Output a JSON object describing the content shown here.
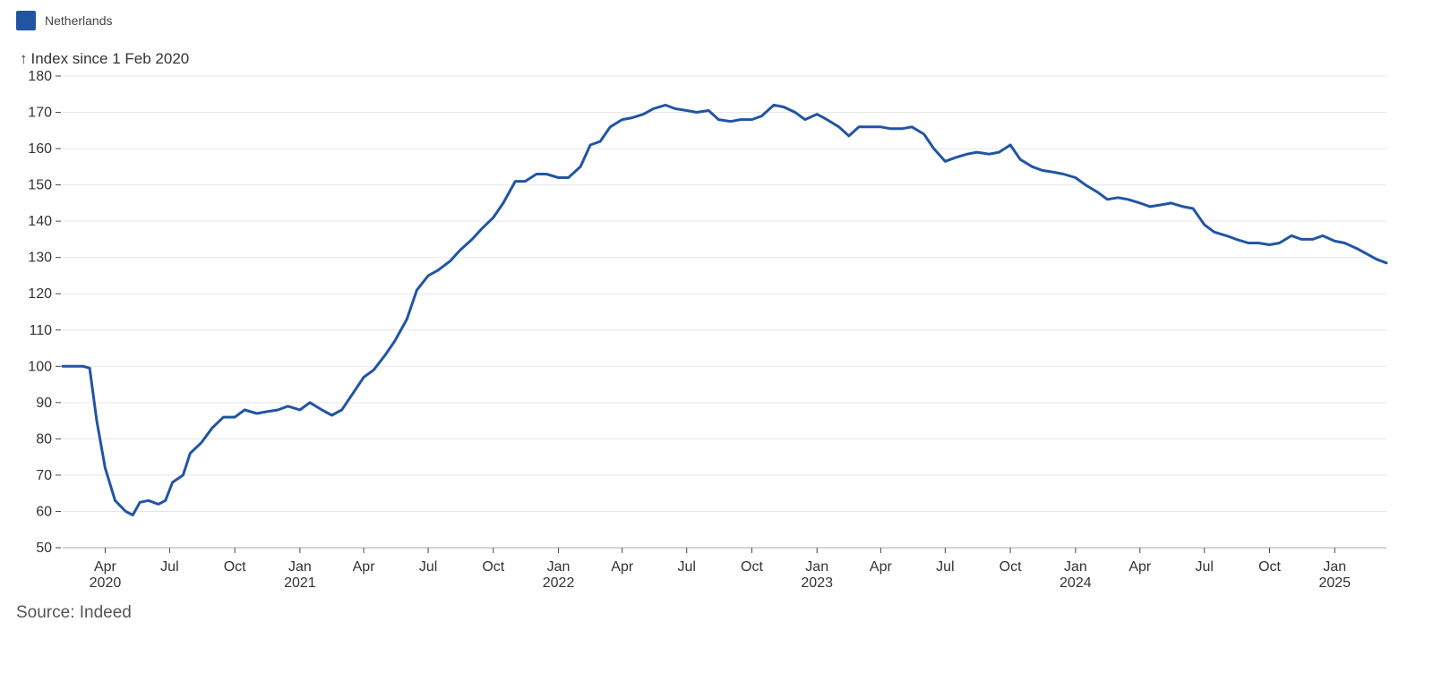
{
  "legend": {
    "label": "Netherlands",
    "color": "#2155a3"
  },
  "source": "Source: Indeed",
  "chart_data": {
    "type": "line",
    "title": "",
    "ylabel": "Index since 1 Feb 2020",
    "xlabel": "",
    "ylim": [
      50,
      180
    ],
    "yticks": [
      50,
      60,
      70,
      80,
      90,
      100,
      110,
      120,
      130,
      140,
      150,
      160,
      170,
      180
    ],
    "grid": true,
    "legend_position": "top-left",
    "xlim": [
      "2020-02-01",
      "2025-03-15"
    ],
    "xticks": [
      {
        "date": "2020-04-01",
        "label": "Apr",
        "year": "2020"
      },
      {
        "date": "2020-07-01",
        "label": "Jul",
        "year": ""
      },
      {
        "date": "2020-10-01",
        "label": "Oct",
        "year": ""
      },
      {
        "date": "2021-01-01",
        "label": "Jan",
        "year": "2021"
      },
      {
        "date": "2021-04-01",
        "label": "Apr",
        "year": ""
      },
      {
        "date": "2021-07-01",
        "label": "Jul",
        "year": ""
      },
      {
        "date": "2021-10-01",
        "label": "Oct",
        "year": ""
      },
      {
        "date": "2022-01-01",
        "label": "Jan",
        "year": "2022"
      },
      {
        "date": "2022-04-01",
        "label": "Apr",
        "year": ""
      },
      {
        "date": "2022-07-01",
        "label": "Jul",
        "year": ""
      },
      {
        "date": "2022-10-01",
        "label": "Oct",
        "year": ""
      },
      {
        "date": "2023-01-01",
        "label": "Jan",
        "year": "2023"
      },
      {
        "date": "2023-04-01",
        "label": "Apr",
        "year": ""
      },
      {
        "date": "2023-07-01",
        "label": "Jul",
        "year": ""
      },
      {
        "date": "2023-10-01",
        "label": "Oct",
        "year": ""
      },
      {
        "date": "2024-01-01",
        "label": "Jan",
        "year": "2024"
      },
      {
        "date": "2024-04-01",
        "label": "Apr",
        "year": ""
      },
      {
        "date": "2024-07-01",
        "label": "Jul",
        "year": ""
      },
      {
        "date": "2024-10-01",
        "label": "Oct",
        "year": ""
      },
      {
        "date": "2025-01-01",
        "label": "Jan",
        "year": "2025"
      }
    ],
    "series": [
      {
        "name": "Netherlands",
        "color": "#2155a3",
        "points": [
          [
            "2020-02-01",
            100
          ],
          [
            "2020-02-15",
            100
          ],
          [
            "2020-03-01",
            100
          ],
          [
            "2020-03-10",
            99.5
          ],
          [
            "2020-03-20",
            85
          ],
          [
            "2020-04-01",
            72
          ],
          [
            "2020-04-15",
            63
          ],
          [
            "2020-04-30",
            60
          ],
          [
            "2020-05-10",
            59
          ],
          [
            "2020-05-20",
            62.5
          ],
          [
            "2020-06-01",
            63
          ],
          [
            "2020-06-15",
            62
          ],
          [
            "2020-06-25",
            63
          ],
          [
            "2020-07-05",
            68
          ],
          [
            "2020-07-20",
            70
          ],
          [
            "2020-07-30",
            76
          ],
          [
            "2020-08-15",
            79
          ],
          [
            "2020-08-30",
            83
          ],
          [
            "2020-09-15",
            86
          ],
          [
            "2020-10-01",
            86
          ],
          [
            "2020-10-15",
            88
          ],
          [
            "2020-11-01",
            87
          ],
          [
            "2020-11-15",
            87.5
          ],
          [
            "2020-12-01",
            88
          ],
          [
            "2020-12-15",
            89
          ],
          [
            "2021-01-01",
            88
          ],
          [
            "2021-01-15",
            90
          ],
          [
            "2021-02-01",
            88
          ],
          [
            "2021-02-15",
            86.5
          ],
          [
            "2021-03-01",
            88
          ],
          [
            "2021-03-15",
            92
          ],
          [
            "2021-04-01",
            97
          ],
          [
            "2021-04-15",
            99
          ],
          [
            "2021-05-01",
            103
          ],
          [
            "2021-05-15",
            107
          ],
          [
            "2021-06-01",
            113
          ],
          [
            "2021-06-15",
            121
          ],
          [
            "2021-07-01",
            125
          ],
          [
            "2021-07-15",
            126.5
          ],
          [
            "2021-08-01",
            129
          ],
          [
            "2021-08-15",
            132
          ],
          [
            "2021-09-01",
            135
          ],
          [
            "2021-09-15",
            138
          ],
          [
            "2021-10-01",
            141
          ],
          [
            "2021-10-15",
            145
          ],
          [
            "2021-11-01",
            151
          ],
          [
            "2021-11-15",
            151
          ],
          [
            "2021-12-01",
            153
          ],
          [
            "2021-12-15",
            153
          ],
          [
            "2022-01-01",
            152
          ],
          [
            "2022-01-15",
            152
          ],
          [
            "2022-02-01",
            155
          ],
          [
            "2022-02-15",
            161
          ],
          [
            "2022-03-01",
            162
          ],
          [
            "2022-03-15",
            166
          ],
          [
            "2022-04-01",
            168
          ],
          [
            "2022-04-15",
            168.5
          ],
          [
            "2022-05-01",
            169.5
          ],
          [
            "2022-05-15",
            171
          ],
          [
            "2022-06-01",
            172
          ],
          [
            "2022-06-15",
            171
          ],
          [
            "2022-07-01",
            170.5
          ],
          [
            "2022-07-15",
            170
          ],
          [
            "2022-08-01",
            170.5
          ],
          [
            "2022-08-15",
            168
          ],
          [
            "2022-09-01",
            167.5
          ],
          [
            "2022-09-15",
            168
          ],
          [
            "2022-10-01",
            168
          ],
          [
            "2022-10-15",
            169
          ],
          [
            "2022-11-01",
            172
          ],
          [
            "2022-11-15",
            171.5
          ],
          [
            "2022-12-01",
            170
          ],
          [
            "2022-12-15",
            168
          ],
          [
            "2023-01-01",
            169.5
          ],
          [
            "2023-01-15",
            168
          ],
          [
            "2023-02-01",
            166
          ],
          [
            "2023-02-15",
            163.5
          ],
          [
            "2023-03-01",
            166
          ],
          [
            "2023-03-15",
            166
          ],
          [
            "2023-04-01",
            166
          ],
          [
            "2023-04-15",
            165.5
          ],
          [
            "2023-05-01",
            165.5
          ],
          [
            "2023-05-15",
            166
          ],
          [
            "2023-06-01",
            164
          ],
          [
            "2023-06-15",
            160
          ],
          [
            "2023-07-01",
            156.5
          ],
          [
            "2023-07-15",
            157.5
          ],
          [
            "2023-08-01",
            158.5
          ],
          [
            "2023-08-15",
            159
          ],
          [
            "2023-09-01",
            158.5
          ],
          [
            "2023-09-15",
            159
          ],
          [
            "2023-10-01",
            161
          ],
          [
            "2023-10-15",
            157
          ],
          [
            "2023-11-01",
            155
          ],
          [
            "2023-11-15",
            154
          ],
          [
            "2023-12-01",
            153.5
          ],
          [
            "2023-12-15",
            153
          ],
          [
            "2024-01-01",
            152
          ],
          [
            "2024-01-15",
            150
          ],
          [
            "2024-02-01",
            148
          ],
          [
            "2024-02-15",
            146
          ],
          [
            "2024-03-01",
            146.5
          ],
          [
            "2024-03-15",
            146
          ],
          [
            "2024-04-01",
            145
          ],
          [
            "2024-04-15",
            144
          ],
          [
            "2024-05-01",
            144.5
          ],
          [
            "2024-05-15",
            145
          ],
          [
            "2024-06-01",
            144
          ],
          [
            "2024-06-15",
            143.5
          ],
          [
            "2024-07-01",
            139
          ],
          [
            "2024-07-15",
            137
          ],
          [
            "2024-08-01",
            136
          ],
          [
            "2024-08-15",
            135
          ],
          [
            "2024-09-01",
            134
          ],
          [
            "2024-09-15",
            134
          ],
          [
            "2024-10-01",
            133.5
          ],
          [
            "2024-10-15",
            134
          ],
          [
            "2024-11-01",
            136
          ],
          [
            "2024-11-15",
            135
          ],
          [
            "2024-12-01",
            135
          ],
          [
            "2024-12-15",
            136
          ],
          [
            "2025-01-01",
            134.5
          ],
          [
            "2025-01-15",
            134
          ],
          [
            "2025-02-01",
            132.5
          ],
          [
            "2025-02-15",
            131
          ],
          [
            "2025-03-01",
            129.5
          ],
          [
            "2025-03-15",
            128.5
          ]
        ]
      }
    ]
  }
}
